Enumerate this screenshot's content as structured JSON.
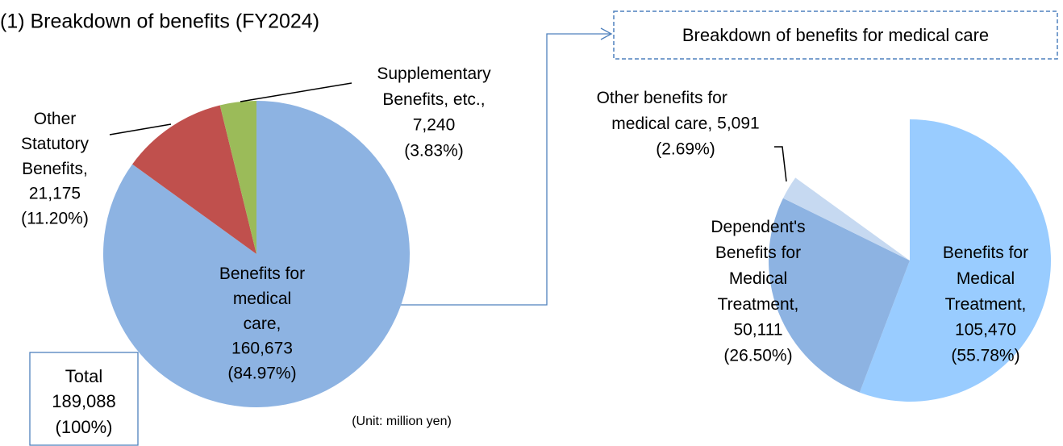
{
  "chart_data": [
    {
      "type": "pie",
      "title": "(1) Breakdown of benefits (FY2024)",
      "categories": [
        "Benefits for\nmedical\ncare,",
        "Other\nStatutory\nBenefits,",
        "Supplementary\nBenefits, etc.,"
      ],
      "values": [
        160673,
        21175,
        7240
      ],
      "value_labels": [
        "160,673",
        "21,175",
        "7,240"
      ],
      "percents": [
        84.97,
        11.2,
        3.83
      ],
      "percent_labels": [
        "(84.97%)",
        "(11.20%)",
        "(3.83%)"
      ],
      "colors": [
        "#8db3e2",
        "#c0504d",
        "#9bbb59"
      ],
      "annotations": [
        "Total",
        "189,088",
        "(100%)",
        "(Unit: million yen)"
      ]
    },
    {
      "type": "pie",
      "title": "Breakdown of benefits for medical care",
      "categories": [
        "Benefits for\nMedical\nTreatment,",
        "Dependent's\nBenefits for\nMedical\nTreatment,",
        "Other benefits for\nmedical care,"
      ],
      "values": [
        105470,
        50111,
        5091
      ],
      "value_labels": [
        "105,470",
        "50,111",
        "5,091"
      ],
      "percents": [
        55.78,
        26.5,
        2.69
      ],
      "percent_labels": [
        "(55.78%)",
        "(26.50%)",
        "(2.69%)"
      ],
      "colors": [
        "#99ccff",
        "#8db3e2",
        "#c6d9f1"
      ]
    }
  ]
}
